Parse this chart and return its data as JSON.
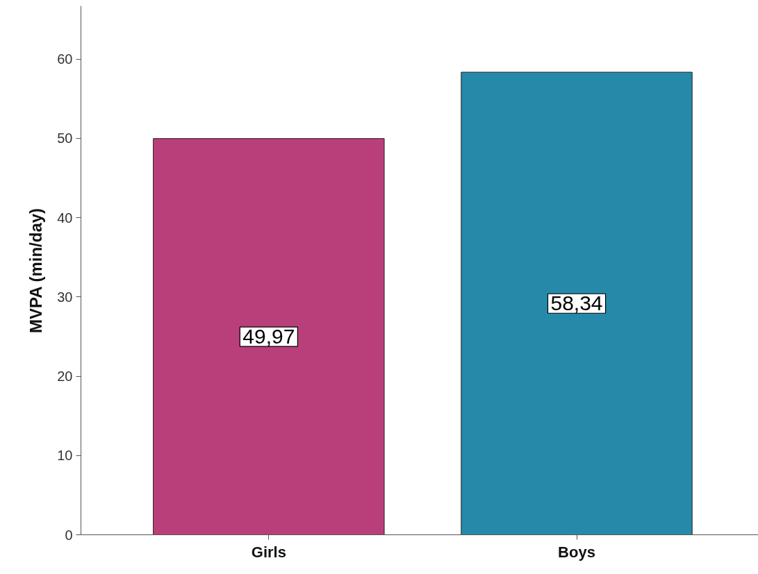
{
  "chart_data": {
    "type": "bar",
    "ylabel": "MVPA (min/day)",
    "categories": [
      "Girls",
      "Boys"
    ],
    "values": [
      49.97,
      58.34
    ],
    "colors": [
      "#b93f7a",
      "#2689a9"
    ],
    "value_labels": [
      "49,97",
      "58,34"
    ],
    "ylim": [
      0,
      66.7
    ],
    "yticks": [
      0,
      10,
      20,
      30,
      40,
      50,
      60
    ],
    "grid": false
  }
}
